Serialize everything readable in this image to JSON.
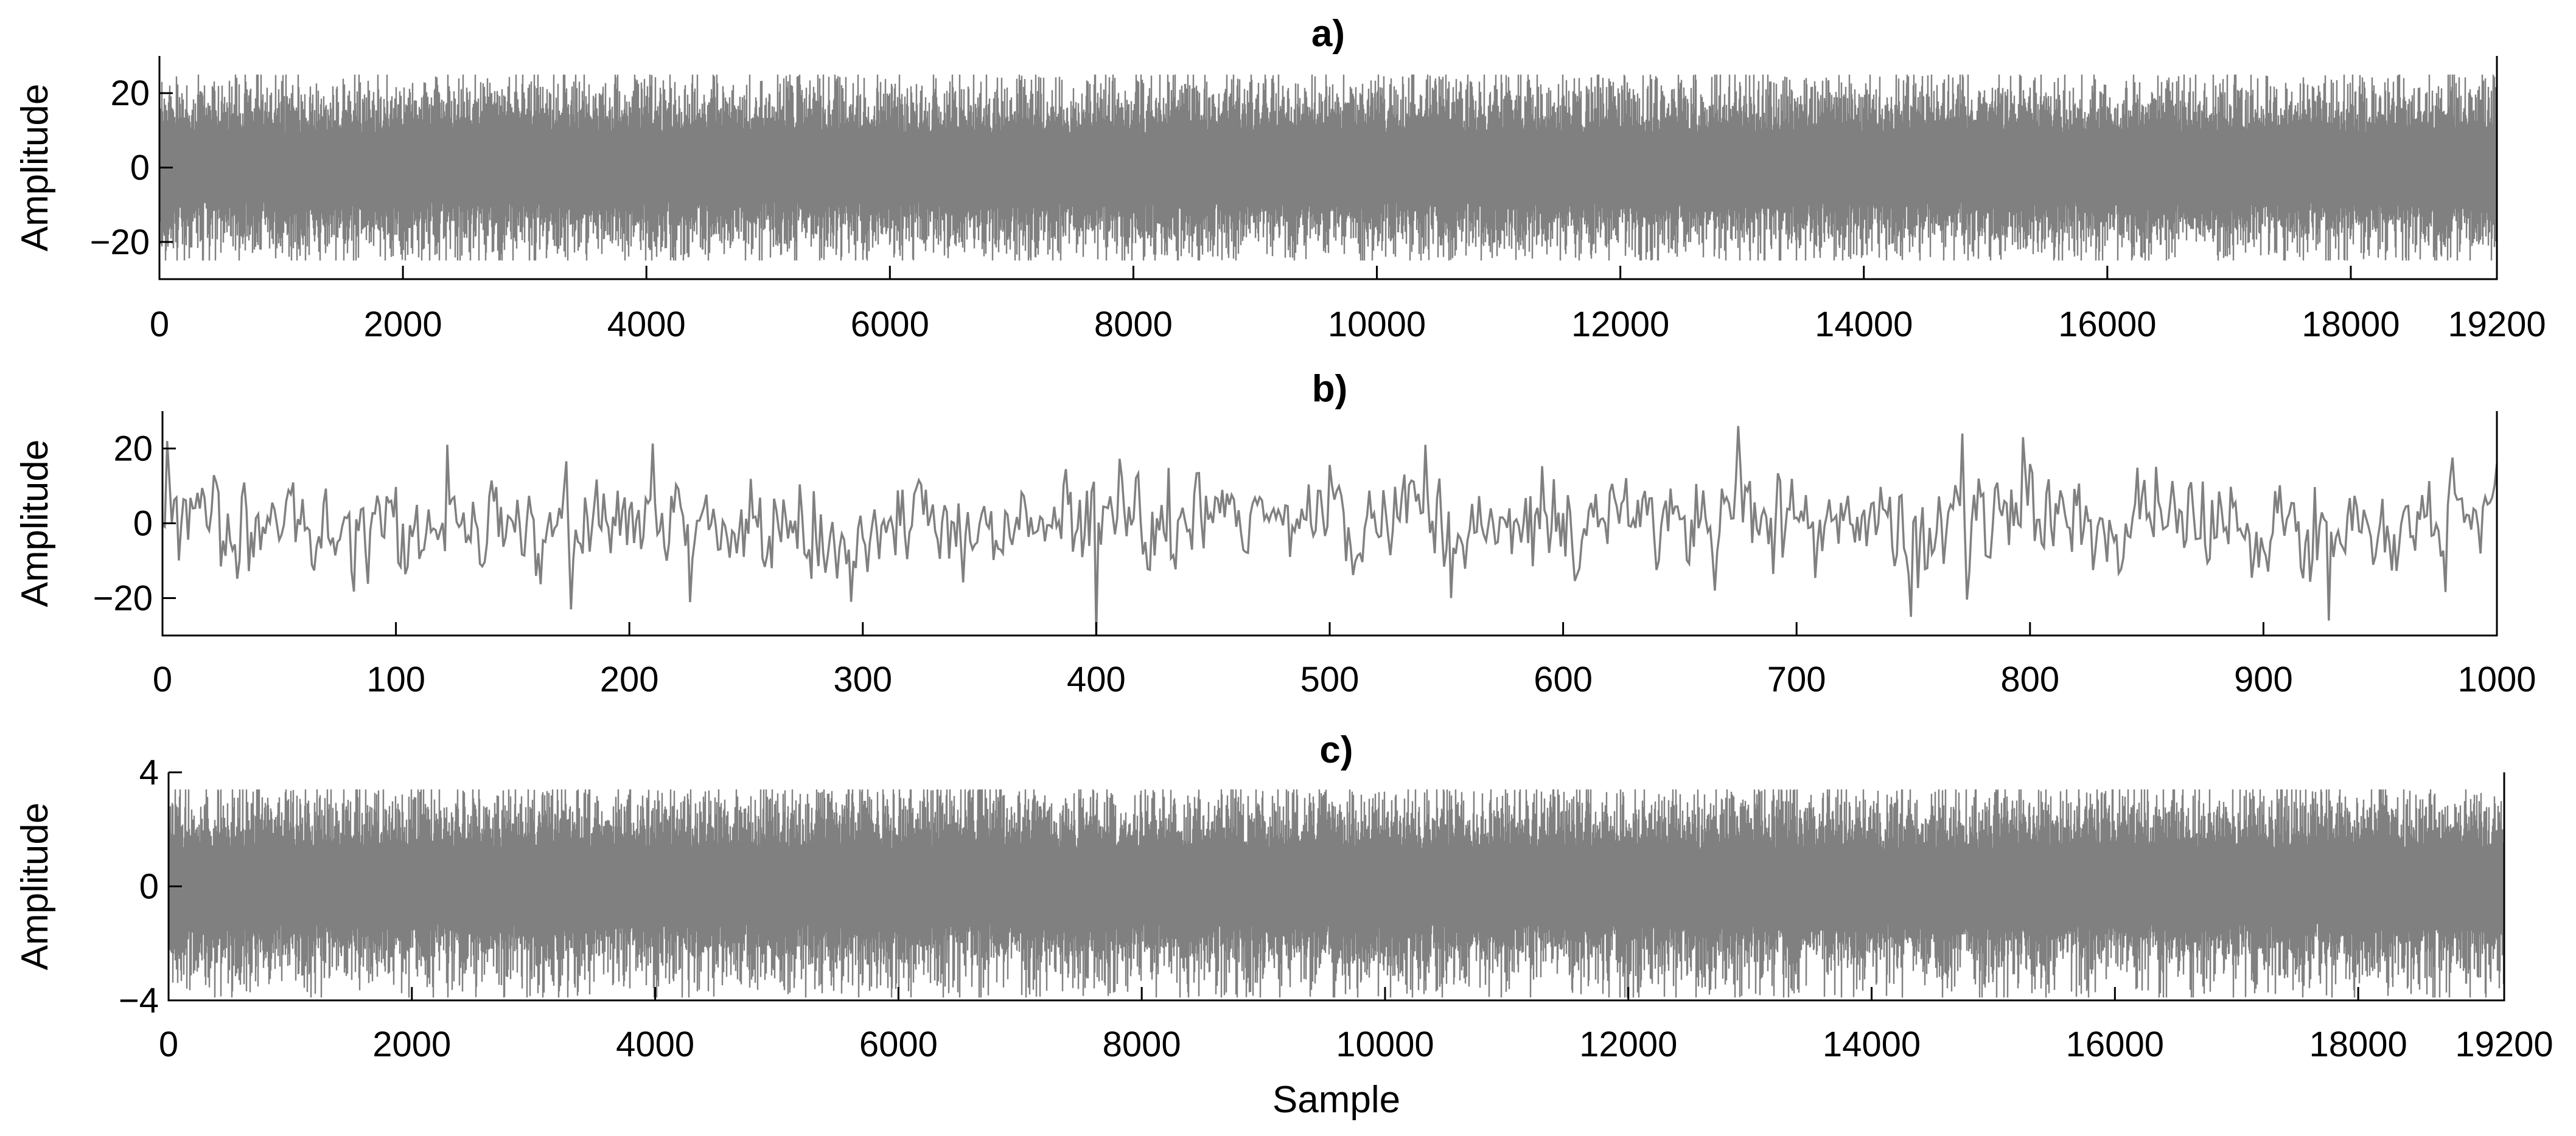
{
  "chart_data": [
    {
      "panel": "a",
      "type": "line",
      "title": "a)",
      "xlabel": "",
      "ylabel": "Amplitude",
      "xlim": [
        0,
        19200
      ],
      "ylim": [
        -30,
        30
      ],
      "xticks": [
        0,
        2000,
        4000,
        6000,
        8000,
        10000,
        12000,
        14000,
        16000,
        18000,
        19200
      ],
      "yticks": [
        -20,
        0,
        20
      ],
      "grid": false,
      "line_color": "#808080",
      "series": [
        {
          "x_start": 0,
          "x_end": 19200,
          "n_samples": 19200,
          "y_min": -25,
          "y_max": 25,
          "typical_range": [
            -14,
            14
          ],
          "values": "dense white-noise-like signal, visually stationary"
        }
      ]
    },
    {
      "panel": "b",
      "type": "line",
      "title": "b)",
      "xlabel": "",
      "ylabel": "Amplitude",
      "xlim": [
        0,
        1000
      ],
      "ylim": [
        -30,
        30
      ],
      "xticks": [
        0,
        100,
        200,
        300,
        400,
        500,
        600,
        700,
        800,
        900,
        1000
      ],
      "yticks": [
        -20,
        0,
        20
      ],
      "grid": false,
      "line_color": "#808080",
      "series": [
        {
          "x_start": 0,
          "x_end": 1000,
          "n_samples": 1000,
          "y_min": -30,
          "y_max": 26,
          "notable_points": [
            {
              "x": 2,
              "y": 22
            },
            {
              "x": 122,
              "y": 21
            },
            {
              "x": 175,
              "y": -23
            },
            {
              "x": 295,
              "y": -21
            },
            {
              "x": 400,
              "y": -30
            },
            {
              "x": 541,
              "y": 21
            },
            {
              "x": 552,
              "y": -20
            },
            {
              "x": 675,
              "y": 26
            },
            {
              "x": 749,
              "y": -25
            },
            {
              "x": 771,
              "y": 24
            },
            {
              "x": 797,
              "y": 23
            },
            {
              "x": 928,
              "y": -26
            },
            {
              "x": 1000,
              "y": 16
            }
          ]
        }
      ]
    },
    {
      "panel": "c",
      "type": "line",
      "title": "c)",
      "xlabel": "Sample",
      "ylabel": "Amplitude",
      "xlim": [
        0,
        19200
      ],
      "ylim": [
        -4,
        4
      ],
      "xticks": [
        0,
        2000,
        4000,
        6000,
        8000,
        10000,
        12000,
        14000,
        16000,
        18000,
        19200
      ],
      "yticks": [
        -4,
        0,
        4
      ],
      "grid": false,
      "line_color": "#808080",
      "series": [
        {
          "x_start": 0,
          "x_end": 19200,
          "n_samples": 19200,
          "y_min": -3.9,
          "y_max": 3.4,
          "typical_range": [
            -2,
            2
          ],
          "values": "dense white-noise-like signal, visually stationary"
        }
      ]
    }
  ]
}
